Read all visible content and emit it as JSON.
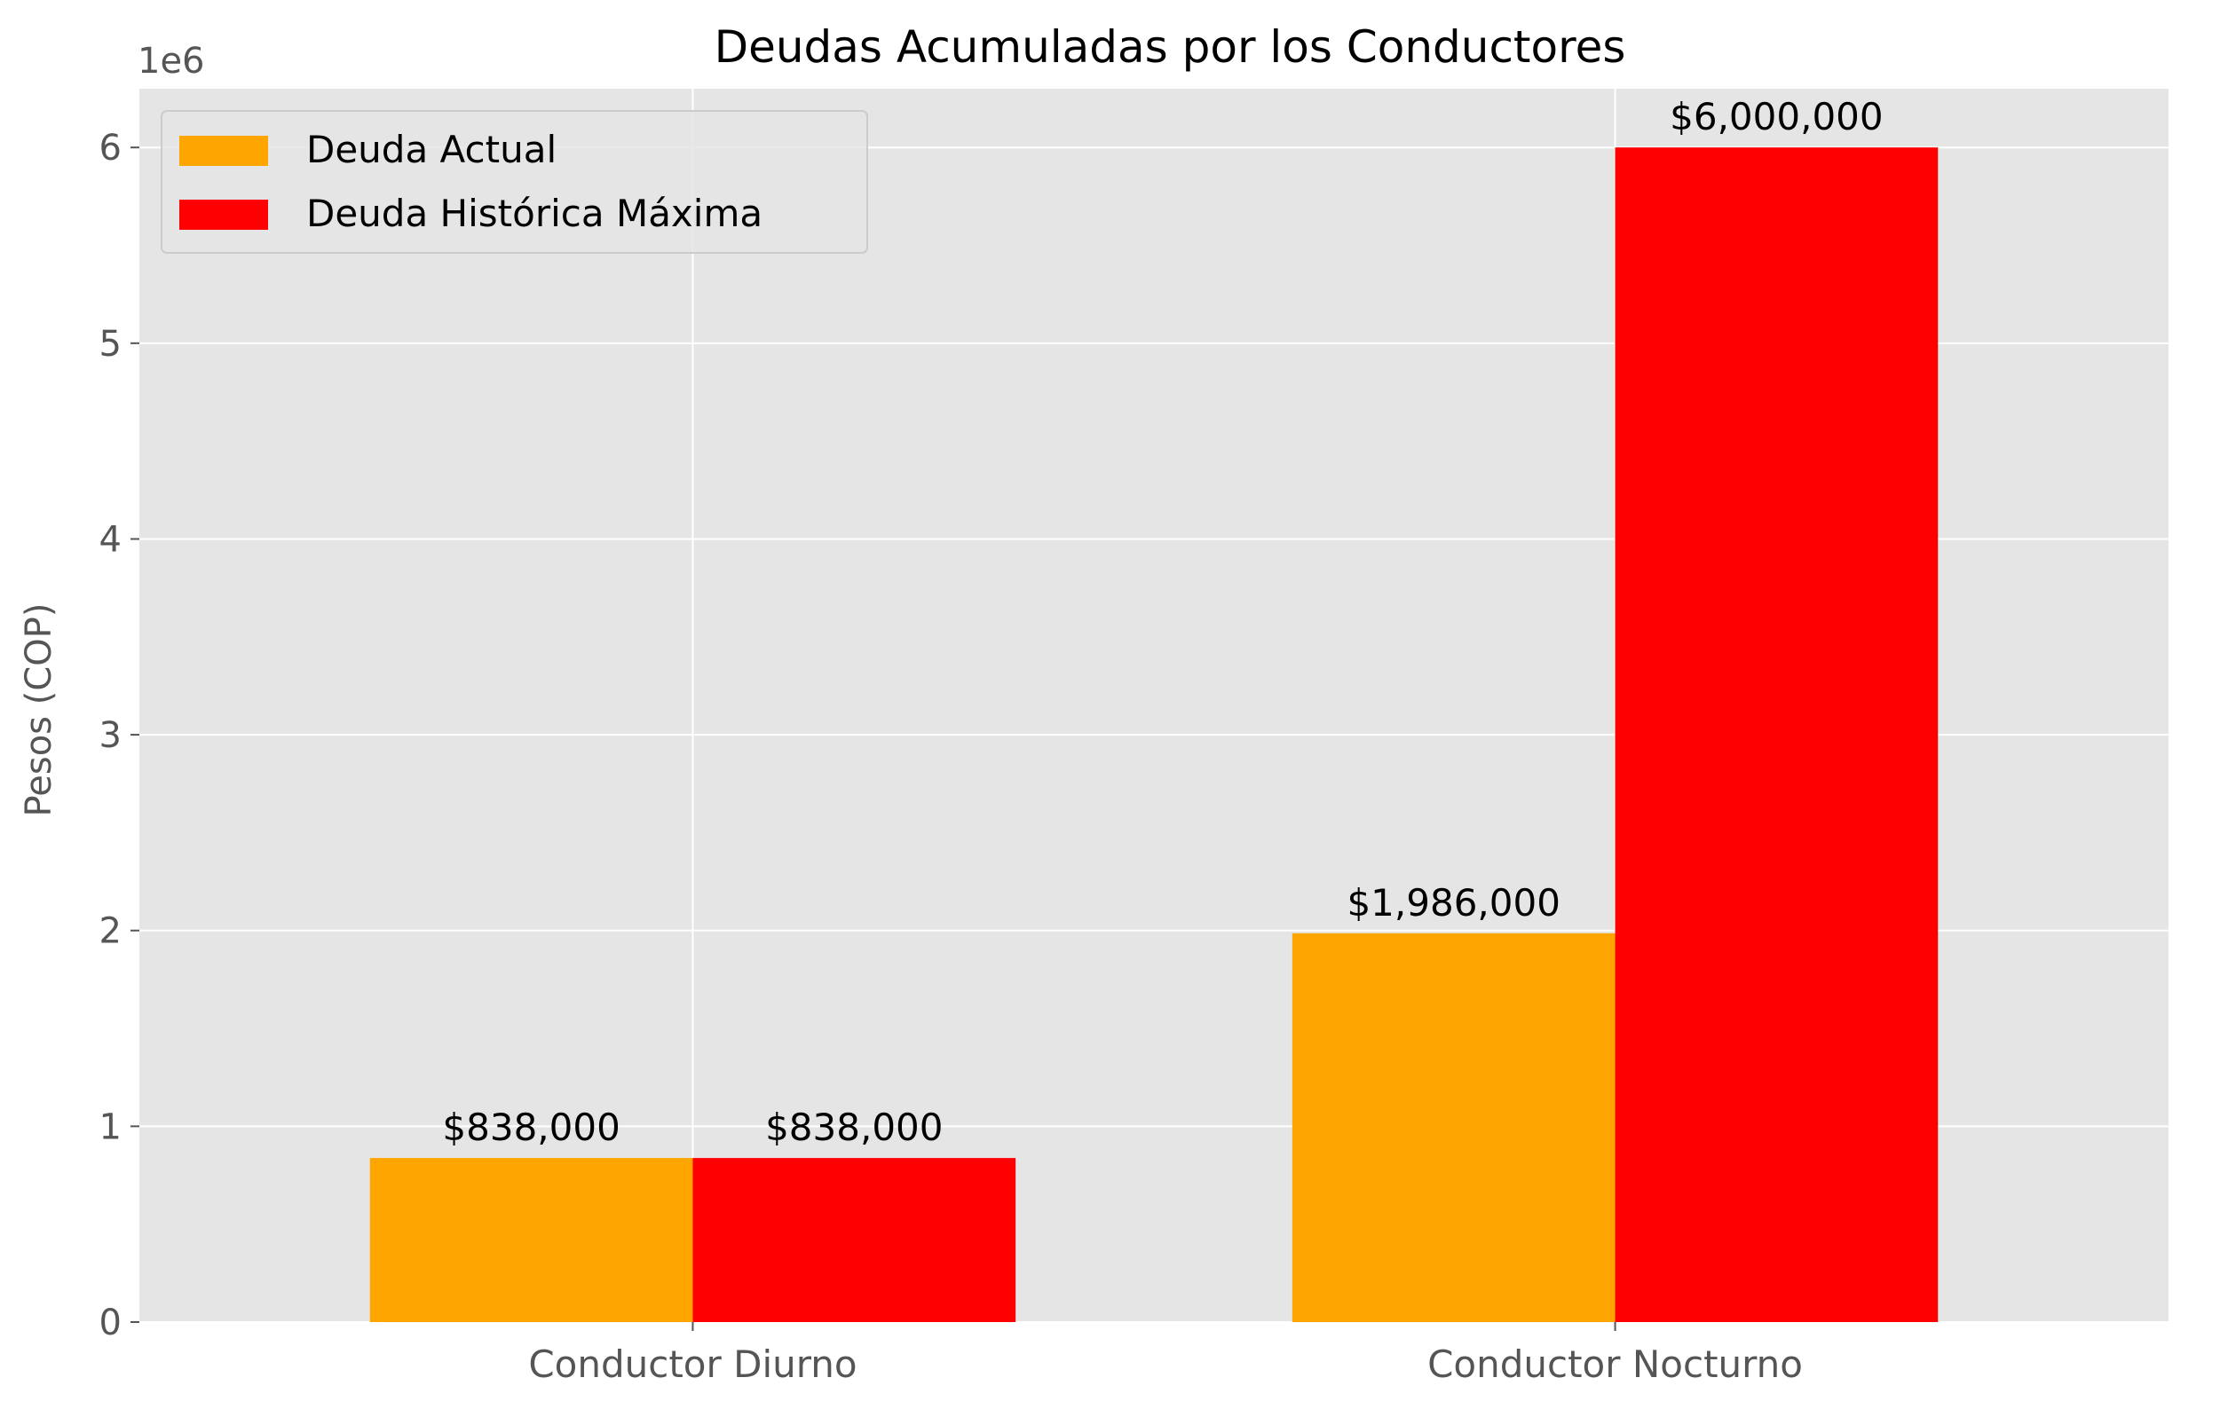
{
  "chart_data": {
    "type": "bar",
    "title": "Deudas Acumuladas por los Conductores",
    "xlabel": "",
    "ylabel": "Pesos (COP)",
    "y_offset_label": "1e6",
    "categories": [
      "Conductor Diurno",
      "Conductor Nocturno"
    ],
    "series": [
      {
        "name": "Deuda Actual",
        "color": "#FFA500",
        "values": [
          838000,
          1986000
        ],
        "labels": [
          "$838,000",
          "$1,986,000"
        ]
      },
      {
        "name": "Deuda Histórica Máxima",
        "color": "#FF0000",
        "values": [
          838000,
          6000000
        ],
        "labels": [
          "$838,000",
          "$6,000,000"
        ]
      }
    ],
    "ylim": [
      0,
      6300000
    ],
    "yticks": [
      0,
      1000000,
      2000000,
      3000000,
      4000000,
      5000000,
      6000000
    ],
    "ytick_labels": [
      "0",
      "1",
      "2",
      "3",
      "4",
      "5",
      "6"
    ],
    "grid": true,
    "legend_position": "top-left",
    "style": {
      "axes_bg": "#E5E5E5",
      "grid_color": "#FFFFFF",
      "tick_label_color": "#555555",
      "title_color": "#000000",
      "value_label_color": "#000000"
    }
  }
}
